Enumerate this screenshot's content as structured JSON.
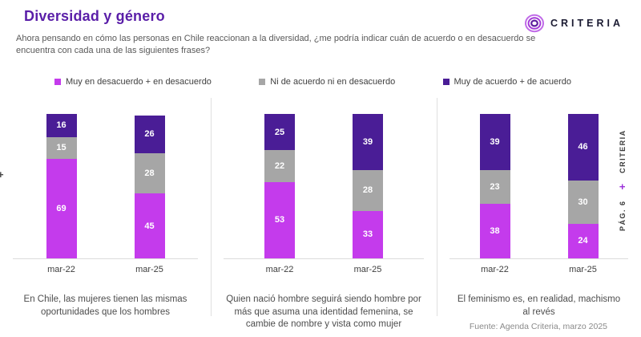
{
  "header": {
    "title": "Diversidad y género",
    "subtitle": "Ahora pensando en cómo las personas en Chile reaccionan a la diversidad, ¿me podría indicar cuán de acuerdo o en desacuerdo se encuentra con cada una de las siguientes frases?",
    "logo_text": "CRITERIA"
  },
  "legend": [
    {
      "label": "Muy en desacuerdo + en desacuerdo",
      "color": "#C43BEC"
    },
    {
      "label": "Ni de acuerdo ni en desacuerdo",
      "color": "#A6A6A6"
    },
    {
      "label": "Muy de acuerdo + de acuerdo",
      "color": "#4A1D96"
    }
  ],
  "chart_data": {
    "type": "bar",
    "stacked": true,
    "units": "percent",
    "ylim": [
      0,
      100
    ],
    "grid": false,
    "legend_position": "top",
    "categories": [
      "mar-22",
      "mar-25"
    ],
    "series_names": [
      "Muy en desacuerdo + en desacuerdo",
      "Ni de acuerdo ni en desacuerdo",
      "Muy de acuerdo + de acuerdo"
    ],
    "panels": [
      {
        "caption": "En Chile, las mujeres tienen las mismas oportunidades que los hombres",
        "bars": [
          {
            "category": "mar-22",
            "values": [
              69,
              15,
              16
            ]
          },
          {
            "category": "mar-25",
            "values": [
              45,
              28,
              26
            ]
          }
        ]
      },
      {
        "caption": "Quien nació hombre seguirá siendo hombre por más que asuma una identidad femenina, se cambie de nombre y vista como mujer",
        "bars": [
          {
            "category": "mar-22",
            "values": [
              53,
              22,
              25
            ]
          },
          {
            "category": "mar-25",
            "values": [
              33,
              28,
              39
            ]
          }
        ]
      },
      {
        "caption": "El feminismo es, en realidad, machismo al revés",
        "bars": [
          {
            "category": "mar-22",
            "values": [
              38,
              23,
              39
            ]
          },
          {
            "category": "mar-25",
            "values": [
              24,
              30,
              46
            ]
          }
        ]
      }
    ]
  },
  "side_rail": {
    "page_label": "PÁG. 6",
    "plus": "+",
    "brand": "CRITERIA"
  },
  "left_edge": {
    "plus": "+"
  },
  "footer": {
    "source": "Fuente: Agenda Criteria, marzo 2025"
  },
  "colors": {
    "title": "#5A1EA8",
    "disagree": "#C43BEC",
    "neutral": "#A6A6A6",
    "agree": "#4A1D96",
    "accent_plus": "#9B30D9",
    "baseline": "#DCDCDC"
  }
}
